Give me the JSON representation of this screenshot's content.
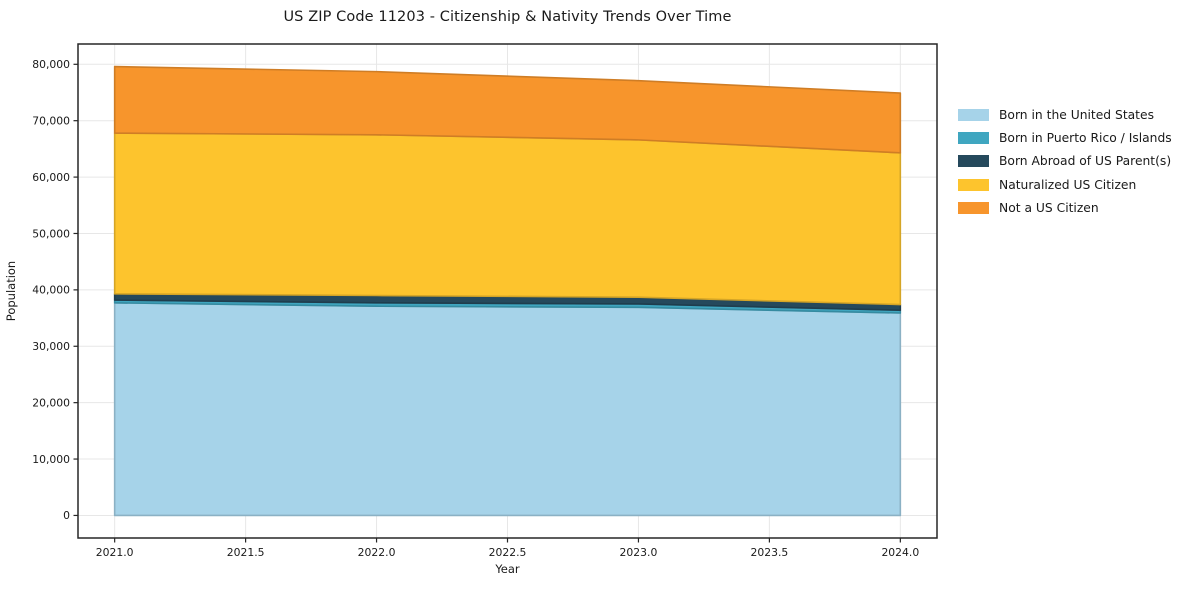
{
  "page": {
    "background": "#ffffff"
  },
  "chart_data": {
    "type": "area",
    "stacked": true,
    "title": "US ZIP Code 11203 - Citizenship & Nativity Trends Over Time",
    "xlabel": "Year",
    "ylabel": "Population",
    "x": [
      2021,
      2022,
      2023,
      2024
    ],
    "series": [
      {
        "name": "Born in the United States",
        "color": "#a6d3e9",
        "values": [
          37700,
          37100,
          36900,
          35900
        ]
      },
      {
        "name": "Born in Puerto Rico / Islands",
        "color": "#3fa6c0",
        "values": [
          500,
          600,
          600,
          500
        ]
      },
      {
        "name": "Born Abroad of US Parent(s)",
        "color": "#25495c",
        "values": [
          1100,
          1300,
          1200,
          1000
        ]
      },
      {
        "name": "Naturalized US Citizen",
        "color": "#fdc42d",
        "values": [
          28500,
          28500,
          27900,
          26900
        ]
      },
      {
        "name": "Not a US Citizen",
        "color": "#f7952c",
        "values": [
          11800,
          11200,
          10500,
          10600
        ]
      }
    ],
    "totals": [
      79600,
      78700,
      77100,
      74900
    ],
    "xlim": [
      2020.86,
      2024.14
    ],
    "ylim": [
      -4000,
      83600
    ],
    "x_ticks": [
      2021.0,
      2021.5,
      2022.0,
      2022.5,
      2023.0,
      2023.5,
      2024.0
    ],
    "x_tick_labels": [
      "2021.0",
      "2021.5",
      "2022.0",
      "2022.5",
      "2023.0",
      "2023.5",
      "2024.0"
    ],
    "y_ticks": [
      0,
      10000,
      20000,
      30000,
      40000,
      50000,
      60000,
      70000,
      80000
    ],
    "y_tick_labels": [
      "0",
      "10,000",
      "20,000",
      "30,000",
      "40,000",
      "50,000",
      "60,000",
      "70,000",
      "80,000"
    ],
    "grid": true,
    "legend_position": "right-outside"
  },
  "style": {
    "grid_color": "#e7e7e7",
    "spine_color": "#262626",
    "tick_color": "#262626",
    "text_color": "#1a1a1a"
  }
}
